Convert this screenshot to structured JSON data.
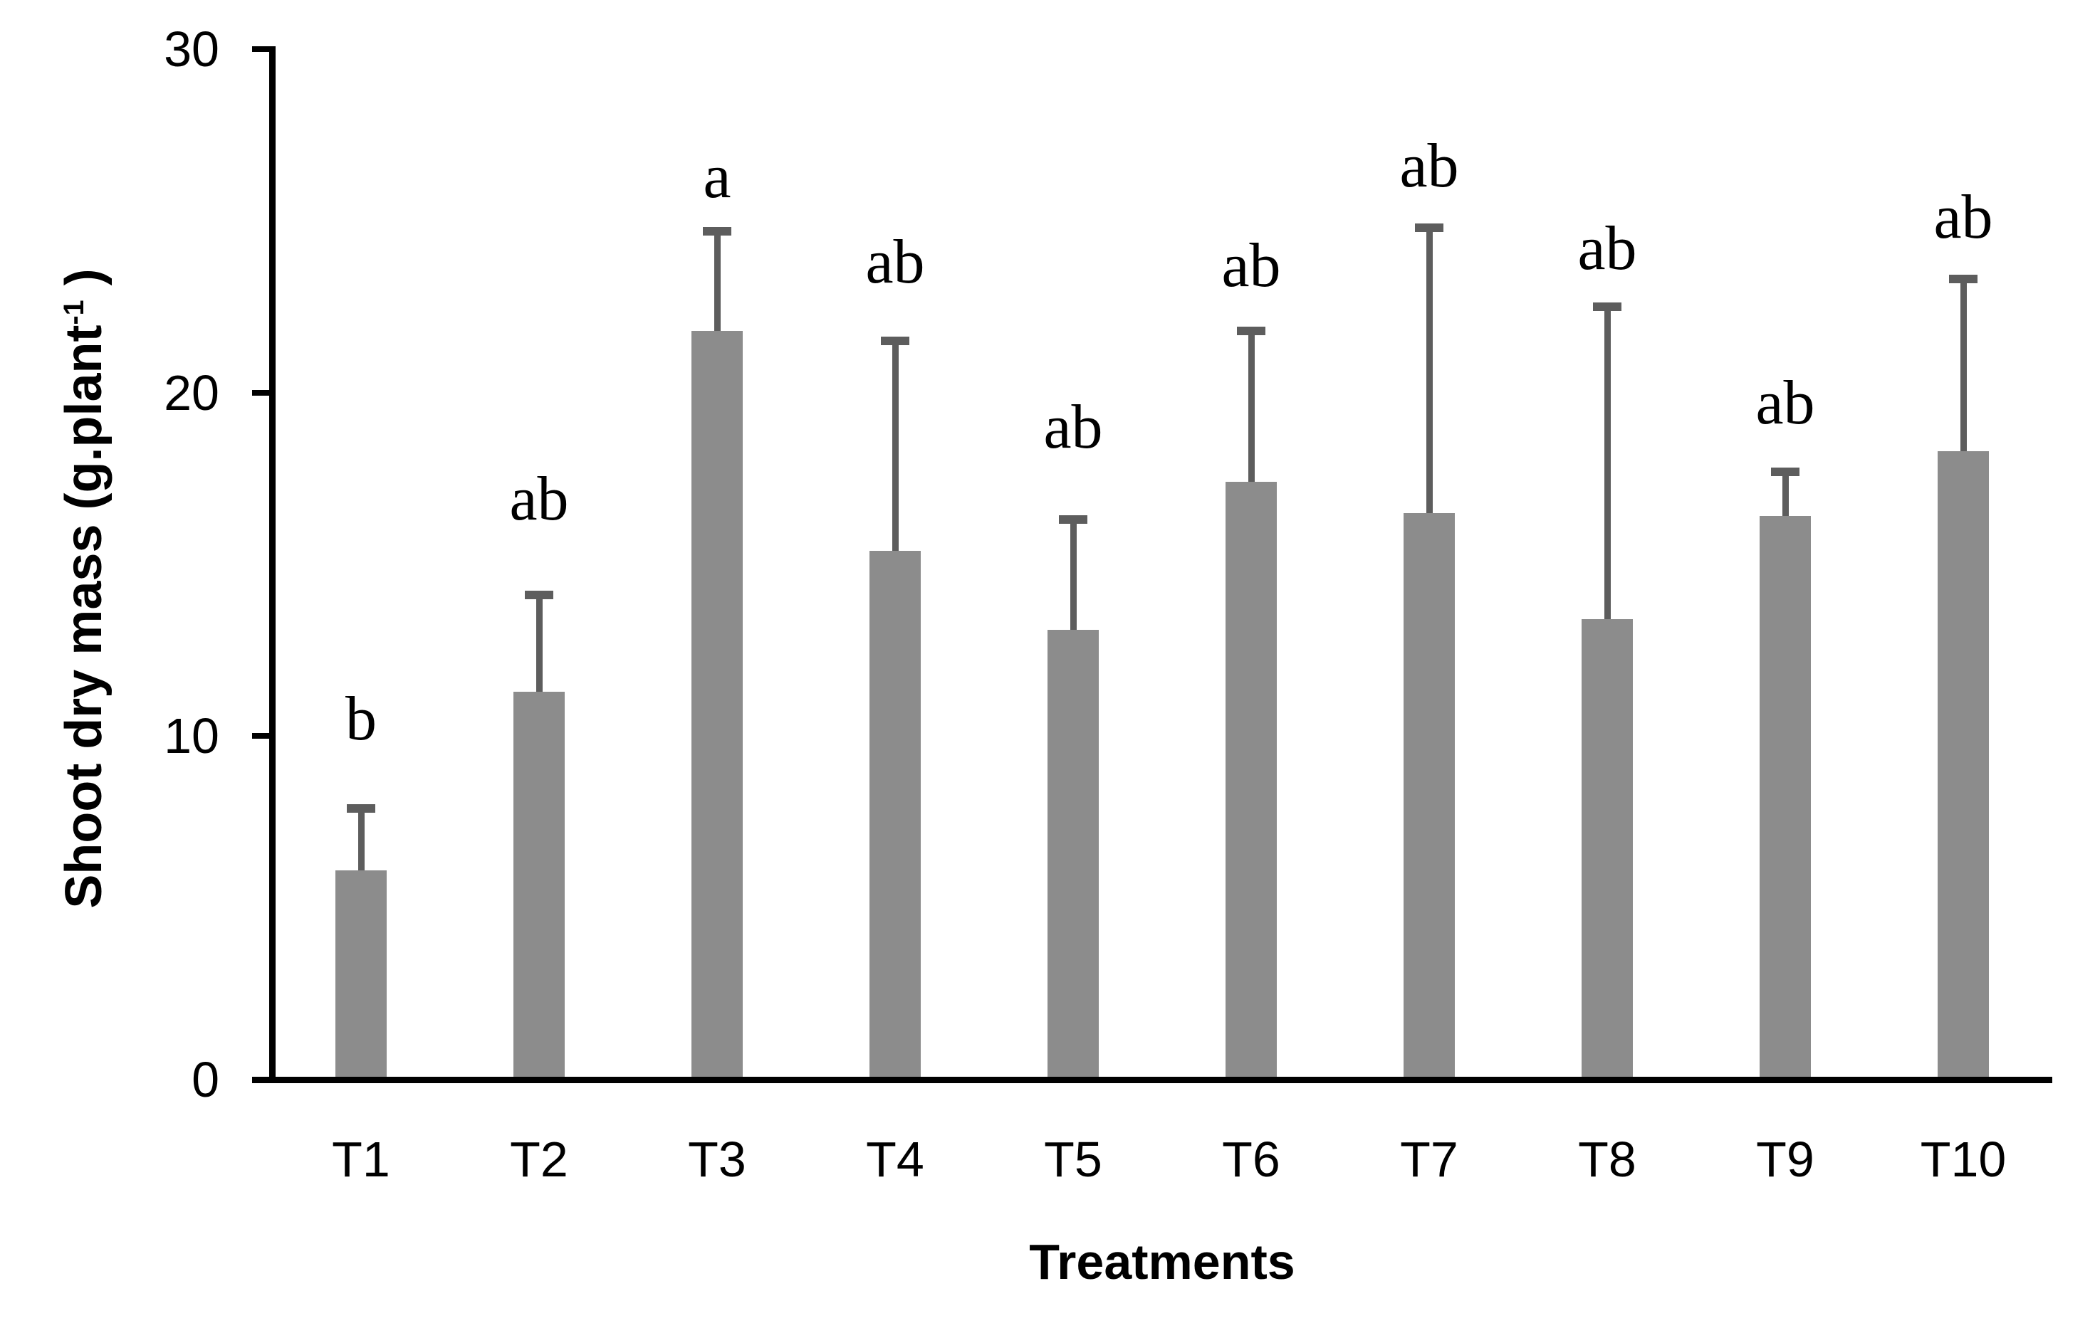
{
  "chart_data": {
    "type": "bar",
    "title": "",
    "xlabel": "Treatments",
    "ylabel_prefix": "Shoot dry mass (g.plant",
    "ylabel_sup": "-1",
    "ylabel_suffix": " )",
    "ylabel_full": "Shoot dry mass (g.plant-1 )",
    "ylim": [
      0,
      30
    ],
    "yticks": [
      0,
      10,
      20,
      30
    ],
    "grid": false,
    "legend_position": "none",
    "bar_color": "#8c8c8c",
    "error_bar_color": "#5d5d5d",
    "axis_color": "#000000",
    "text_color": "#000000",
    "categories": [
      "T1",
      "T2",
      "T3",
      "T4",
      "T5",
      "T6",
      "T7",
      "T8",
      "T9",
      "T10"
    ],
    "series": [
      {
        "name": "Shoot dry mass",
        "values": [
          6.1,
          11.3,
          21.8,
          15.4,
          13.1,
          17.4,
          16.5,
          13.4,
          16.4,
          18.3
        ],
        "error_upper": [
          1.8,
          2.8,
          2.9,
          6.1,
          3.2,
          4.4,
          8.3,
          9.1,
          1.3,
          5.0
        ]
      }
    ],
    "significance_letters": [
      "b",
      "ab",
      "a",
      "ab",
      "ab",
      "ab",
      "ab",
      "ab",
      "ab",
      "ab"
    ],
    "letter_baseline_values": [
      9.9,
      16.3,
      25.7,
      23.2,
      18.4,
      23.1,
      26.0,
      23.6,
      19.1,
      24.5
    ]
  }
}
